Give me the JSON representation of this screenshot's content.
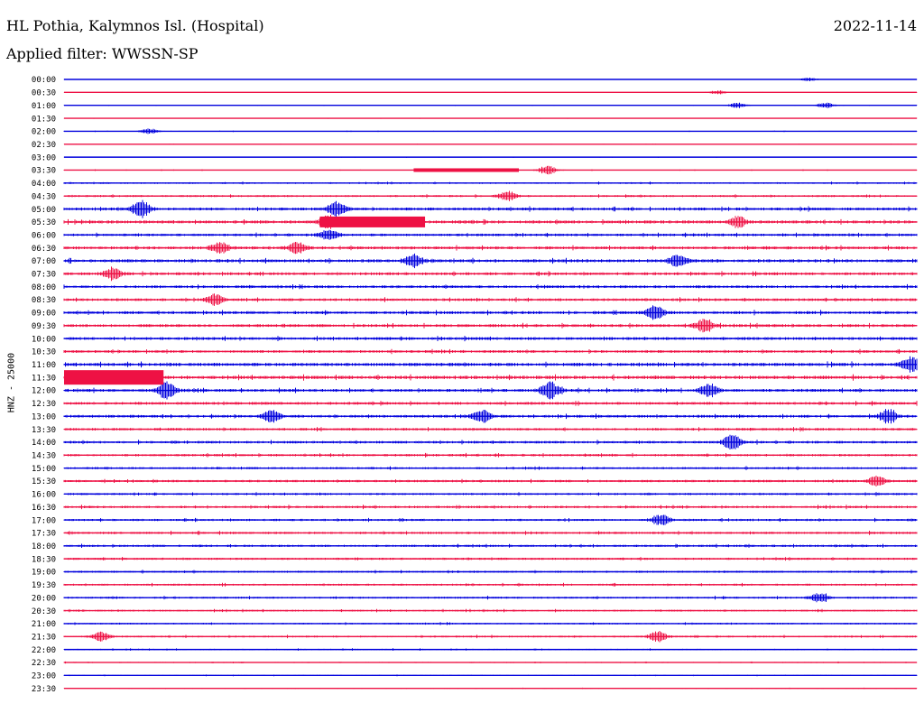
{
  "header": {
    "station": "HL Pothia, Kalymnos Isl. (Hospital)",
    "date": "2022-11-14",
    "filter": "Applied filter: WWSSN-SP"
  },
  "channel_label": "HNZ - 25000",
  "colors": {
    "even_row": "#0000dd",
    "odd_row": "#ee1144",
    "background": "#ffffff"
  },
  "chart_data": {
    "type": "line",
    "title": "HL Pothia, Kalymnos Isl. (Hospital)",
    "subtitle": "Applied filter: WWSSN-SP",
    "ylabel": "HNZ - 25000",
    "row_labels": [
      "00:00",
      "00:30",
      "01:00",
      "01:30",
      "02:00",
      "02:30",
      "03:00",
      "03:30",
      "04:00",
      "04:30",
      "05:00",
      "05:30",
      "06:00",
      "06:30",
      "07:00",
      "07:30",
      "08:00",
      "08:30",
      "09:00",
      "09:30",
      "10:00",
      "10:30",
      "11:00",
      "11:30",
      "12:00",
      "12:30",
      "13:00",
      "13:30",
      "14:00",
      "14:30",
      "15:00",
      "15:30",
      "16:00",
      "16:30",
      "17:00",
      "17:30",
      "18:00",
      "18:30",
      "19:00",
      "19:30",
      "20:00",
      "20:30",
      "21:00",
      "21:30",
      "22:00",
      "22:30",
      "23:00",
      "23:30"
    ],
    "row_amplitude": [
      0.2,
      0.3,
      0.3,
      0.3,
      0.4,
      0.3,
      0.3,
      0.5,
      0.9,
      1.1,
      1.6,
      1.7,
      1.4,
      1.6,
      1.7,
      1.6,
      1.5,
      1.5,
      1.6,
      1.6,
      1.6,
      1.5,
      1.8,
      1.9,
      1.6,
      1.5,
      1.5,
      1.4,
      1.4,
      1.3,
      1.2,
      1.3,
      1.2,
      1.3,
      1.2,
      1.3,
      1.2,
      1.2,
      1.1,
      1.1,
      1.1,
      1.0,
      0.9,
      1.0,
      0.7,
      0.6,
      0.5,
      0.4
    ],
    "events": [
      {
        "row": "00:00",
        "minute": 26.2,
        "amplitude": 2
      },
      {
        "row": "00:30",
        "minute": 23.0,
        "amplitude": 2
      },
      {
        "row": "01:00",
        "minute": 23.7,
        "amplitude": 3
      },
      {
        "row": "01:00",
        "minute": 26.8,
        "amplitude": 3
      },
      {
        "row": "02:00",
        "minute": 3.0,
        "amplitude": 3
      },
      {
        "row": "03:30",
        "minute": 17.0,
        "amplitude": 5
      },
      {
        "row": "04:30",
        "minute": 15.6,
        "amplitude": 5
      },
      {
        "row": "05:00",
        "minute": 2.7,
        "amplitude": 10
      },
      {
        "row": "05:00",
        "minute": 9.6,
        "amplitude": 8
      },
      {
        "row": "05:30",
        "minute": 9.3,
        "amplitude": 7
      },
      {
        "row": "05:30",
        "minute": 23.7,
        "amplitude": 6
      },
      {
        "row": "06:00",
        "minute": 9.3,
        "amplitude": 6
      },
      {
        "row": "06:30",
        "minute": 5.5,
        "amplitude": 6
      },
      {
        "row": "06:30",
        "minute": 8.2,
        "amplitude": 6
      },
      {
        "row": "07:00",
        "minute": 12.3,
        "amplitude": 7
      },
      {
        "row": "07:00",
        "minute": 21.6,
        "amplitude": 7
      },
      {
        "row": "07:30",
        "minute": 1.7,
        "amplitude": 6
      },
      {
        "row": "08:30",
        "minute": 5.3,
        "amplitude": 6
      },
      {
        "row": "09:00",
        "minute": 20.8,
        "amplitude": 8
      },
      {
        "row": "09:30",
        "minute": 22.5,
        "amplitude": 7
      },
      {
        "row": "11:00",
        "minute": 29.8,
        "amplitude": 9
      },
      {
        "row": "12:00",
        "minute": 3.6,
        "amplitude": 9
      },
      {
        "row": "12:00",
        "minute": 17.1,
        "amplitude": 9
      },
      {
        "row": "12:00",
        "minute": 22.7,
        "amplitude": 7
      },
      {
        "row": "13:00",
        "minute": 7.3,
        "amplitude": 7
      },
      {
        "row": "13:00",
        "minute": 14.7,
        "amplitude": 7
      },
      {
        "row": "13:00",
        "minute": 29.0,
        "amplitude": 7
      },
      {
        "row": "14:00",
        "minute": 23.5,
        "amplitude": 9
      },
      {
        "row": "15:30",
        "minute": 28.6,
        "amplitude": 6
      },
      {
        "row": "17:00",
        "minute": 21.0,
        "amplitude": 6
      },
      {
        "row": "20:00",
        "minute": 26.6,
        "amplitude": 5
      },
      {
        "row": "21:30",
        "minute": 1.3,
        "amplitude": 5
      },
      {
        "row": "21:30",
        "minute": 20.9,
        "amplitude": 6
      }
    ],
    "saturated": [
      {
        "row": "03:30",
        "start_minute": 12.3,
        "end_minute": 16.0,
        "amplitude": 2
      },
      {
        "row": "05:30",
        "start_minute": 9.0,
        "end_minute": 12.7,
        "amplitude": 6
      },
      {
        "row": "11:30",
        "start_minute": 0.0,
        "end_minute": 3.5,
        "amplitude": 8
      }
    ],
    "x_range_minutes": [
      0,
      30
    ],
    "grid": false
  }
}
